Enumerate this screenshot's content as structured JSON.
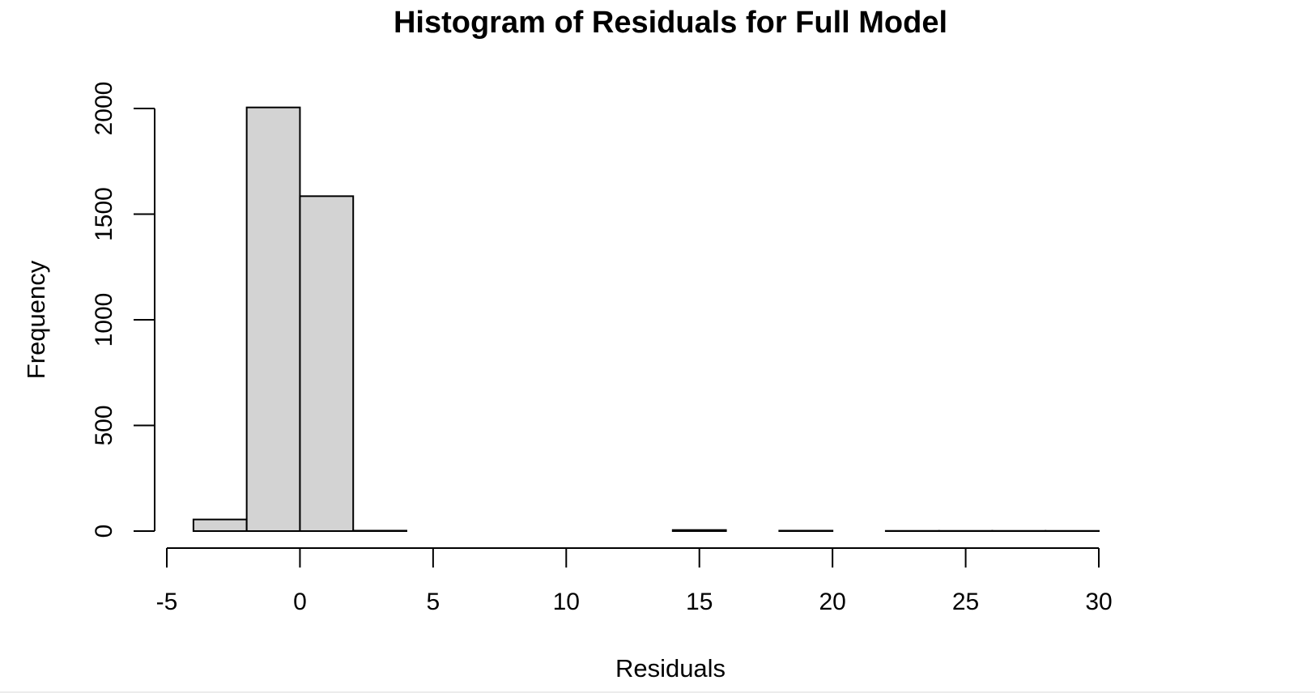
{
  "chart_data": {
    "type": "bar",
    "subtype": "histogram",
    "title": "Histogram of Residuals for Full Model",
    "xlabel": "Residuals",
    "ylabel": "Frequency",
    "xlim": [
      -5,
      32
    ],
    "ylim": [
      0,
      2000
    ],
    "x_ticks": [
      -5,
      0,
      5,
      10,
      15,
      20,
      25,
      30
    ],
    "x_tick_labels": [
      "-5",
      "0",
      "5",
      "10",
      "15",
      "20",
      "25",
      "30"
    ],
    "y_ticks": [
      0,
      500,
      1000,
      1500,
      2000
    ],
    "y_tick_labels": [
      "0",
      "500",
      "1000",
      "1500",
      "2000"
    ],
    "bins": [
      {
        "start": -4,
        "end": -2,
        "count": 55
      },
      {
        "start": -2,
        "end": 0,
        "count": 2005
      },
      {
        "start": 0,
        "end": 2,
        "count": 1585
      },
      {
        "start": 2,
        "end": 4,
        "count": 2
      },
      {
        "start": 4,
        "end": 6,
        "count": 0
      },
      {
        "start": 6,
        "end": 8,
        "count": 0
      },
      {
        "start": 8,
        "end": 10,
        "count": 0
      },
      {
        "start": 10,
        "end": 12,
        "count": 0
      },
      {
        "start": 12,
        "end": 14,
        "count": 0
      },
      {
        "start": 14,
        "end": 16,
        "count": 5
      },
      {
        "start": 16,
        "end": 18,
        "count": 0
      },
      {
        "start": 18,
        "end": 20,
        "count": 2
      },
      {
        "start": 20,
        "end": 22,
        "count": 0
      },
      {
        "start": 22,
        "end": 24,
        "count": 1
      },
      {
        "start": 24,
        "end": 26,
        "count": 1
      },
      {
        "start": 26,
        "end": 28,
        "count": 1
      },
      {
        "start": 28,
        "end": 30,
        "count": 1
      },
      {
        "start": 30,
        "end": 32,
        "count": 0
      }
    ],
    "grid": false,
    "legend": "none",
    "colors": {
      "bar_fill": "#d3d3d3",
      "bar_stroke": "#000000",
      "axis": "#000000",
      "background": "#ffffff"
    }
  }
}
